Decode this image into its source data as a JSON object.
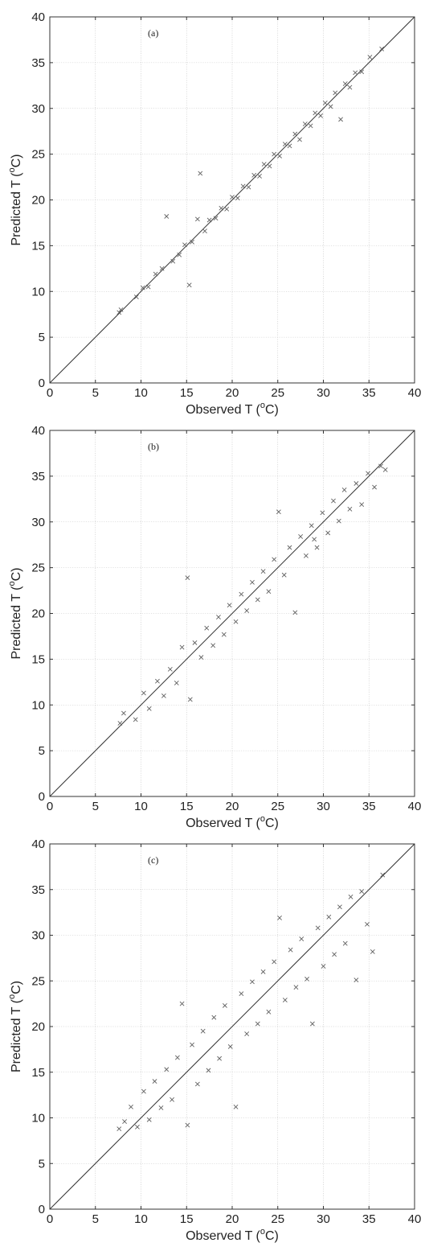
{
  "chart_data": [
    {
      "type": "scatter",
      "panel_label": "(a)",
      "xlabel": "Observed T (",
      "ylabel": "Predicted T (",
      "unit_sup": "o",
      "unit_tail": "C)",
      "xlim": [
        0,
        40
      ],
      "ylim": [
        0,
        40
      ],
      "xticks": [
        "0",
        "5",
        "10",
        "15",
        "20",
        "25",
        "30",
        "35",
        "40"
      ],
      "yticks": [
        "0",
        "5",
        "10",
        "15",
        "20",
        "25",
        "30",
        "35",
        "40"
      ],
      "grid": true,
      "marker": "x",
      "reference_line": "1:1",
      "series": [
        {
          "points": [
            [
              7.6,
              7.7
            ],
            [
              7.8,
              8.0
            ],
            [
              9.5,
              9.4
            ],
            [
              10.2,
              10.4
            ],
            [
              10.8,
              10.5
            ],
            [
              11.6,
              11.9
            ],
            [
              12.3,
              12.5
            ],
            [
              12.8,
              18.2
            ],
            [
              13.5,
              13.3
            ],
            [
              14.2,
              14.0
            ],
            [
              14.8,
              15.1
            ],
            [
              15.3,
              10.7
            ],
            [
              15.6,
              15.4
            ],
            [
              16.2,
              17.9
            ],
            [
              16.5,
              22.9
            ],
            [
              17.0,
              16.6
            ],
            [
              17.5,
              17.8
            ],
            [
              18.2,
              18.0
            ],
            [
              18.8,
              19.1
            ],
            [
              19.4,
              19.0
            ],
            [
              20.0,
              20.3
            ],
            [
              20.6,
              20.2
            ],
            [
              21.2,
              21.5
            ],
            [
              21.8,
              21.4
            ],
            [
              22.4,
              22.7
            ],
            [
              23.0,
              22.6
            ],
            [
              23.5,
              23.9
            ],
            [
              24.1,
              23.7
            ],
            [
              24.6,
              25.0
            ],
            [
              25.2,
              24.8
            ],
            [
              25.8,
              26.1
            ],
            [
              26.3,
              25.9
            ],
            [
              26.9,
              27.2
            ],
            [
              27.4,
              26.6
            ],
            [
              28.0,
              28.3
            ],
            [
              28.6,
              28.1
            ],
            [
              29.1,
              29.5
            ],
            [
              29.7,
              29.2
            ],
            [
              30.2,
              30.6
            ],
            [
              30.8,
              30.2
            ],
            [
              31.3,
              31.7
            ],
            [
              31.9,
              28.8
            ],
            [
              32.4,
              32.7
            ],
            [
              32.9,
              32.3
            ],
            [
              33.5,
              33.9
            ],
            [
              34.2,
              34.0
            ],
            [
              35.1,
              35.6
            ],
            [
              36.4,
              36.5
            ]
          ]
        }
      ]
    },
    {
      "type": "scatter",
      "panel_label": "(b)",
      "xlabel": "Observed T (",
      "ylabel": "Predicted T (",
      "unit_sup": "o",
      "unit_tail": "C)",
      "xlim": [
        0,
        40
      ],
      "ylim": [
        0,
        40
      ],
      "xticks": [
        "0",
        "5",
        "10",
        "15",
        "20",
        "25",
        "30",
        "35",
        "40"
      ],
      "yticks": [
        "0",
        "5",
        "10",
        "15",
        "20",
        "25",
        "30",
        "35",
        "40"
      ],
      "grid": true,
      "marker": "x",
      "reference_line": "1:1",
      "series": [
        {
          "points": [
            [
              7.7,
              8.0
            ],
            [
              8.1,
              9.1
            ],
            [
              9.4,
              8.4
            ],
            [
              10.3,
              11.3
            ],
            [
              10.9,
              9.6
            ],
            [
              11.8,
              12.6
            ],
            [
              12.5,
              11.0
            ],
            [
              13.2,
              13.9
            ],
            [
              13.9,
              12.4
            ],
            [
              14.5,
              16.3
            ],
            [
              15.1,
              23.9
            ],
            [
              15.4,
              10.6
            ],
            [
              15.9,
              16.8
            ],
            [
              16.6,
              15.2
            ],
            [
              17.2,
              18.4
            ],
            [
              17.9,
              16.5
            ],
            [
              18.5,
              19.6
            ],
            [
              19.1,
              17.7
            ],
            [
              19.7,
              20.9
            ],
            [
              20.4,
              19.1
            ],
            [
              21.0,
              22.1
            ],
            [
              21.6,
              20.3
            ],
            [
              22.2,
              23.4
            ],
            [
              22.8,
              21.5
            ],
            [
              23.4,
              24.6
            ],
            [
              24.0,
              22.4
            ],
            [
              24.6,
              25.9
            ],
            [
              25.1,
              31.1
            ],
            [
              25.7,
              24.2
            ],
            [
              26.3,
              27.2
            ],
            [
              26.9,
              20.1
            ],
            [
              27.5,
              28.4
            ],
            [
              28.1,
              26.3
            ],
            [
              28.7,
              29.6
            ],
            [
              29.3,
              27.2
            ],
            [
              29.9,
              31.0
            ],
            [
              30.5,
              28.8
            ],
            [
              31.1,
              32.3
            ],
            [
              31.7,
              30.1
            ],
            [
              32.3,
              33.5
            ],
            [
              32.9,
              31.4
            ],
            [
              33.6,
              34.2
            ],
            [
              34.2,
              31.9
            ],
            [
              34.9,
              35.3
            ],
            [
              35.6,
              33.8
            ],
            [
              36.3,
              36.1
            ],
            [
              36.8,
              35.7
            ],
            [
              29.0,
              28.1
            ]
          ]
        }
      ]
    },
    {
      "type": "scatter",
      "panel_label": "(c)",
      "xlabel": "Observed T (",
      "ylabel": "Predicted T (",
      "unit_sup": "o",
      "unit_tail": "C)",
      "xlim": [
        0,
        40
      ],
      "ylim": [
        0,
        40
      ],
      "xticks": [
        "0",
        "5",
        "10",
        "15",
        "20",
        "25",
        "30",
        "35",
        "40"
      ],
      "yticks": [
        "0",
        "5",
        "10",
        "15",
        "20",
        "25",
        "30",
        "35",
        "40"
      ],
      "grid": true,
      "marker": "x",
      "reference_line": "1:1",
      "series": [
        {
          "points": [
            [
              7.6,
              8.8
            ],
            [
              8.2,
              9.6
            ],
            [
              8.9,
              11.2
            ],
            [
              9.6,
              9.0
            ],
            [
              10.3,
              12.9
            ],
            [
              10.9,
              9.8
            ],
            [
              11.5,
              14.0
            ],
            [
              12.2,
              11.1
            ],
            [
              12.8,
              15.3
            ],
            [
              13.4,
              12.0
            ],
            [
              14.0,
              16.6
            ],
            [
              14.5,
              22.5
            ],
            [
              15.1,
              9.2
            ],
            [
              15.6,
              18.0
            ],
            [
              16.2,
              13.7
            ],
            [
              16.8,
              19.5
            ],
            [
              17.4,
              15.2
            ],
            [
              18.0,
              21.0
            ],
            [
              18.6,
              16.5
            ],
            [
              19.2,
              22.3
            ],
            [
              19.8,
              17.8
            ],
            [
              20.4,
              11.2
            ],
            [
              21.0,
              23.6
            ],
            [
              21.6,
              19.2
            ],
            [
              22.2,
              24.9
            ],
            [
              22.8,
              20.3
            ],
            [
              23.4,
              26.0
            ],
            [
              24.0,
              21.6
            ],
            [
              24.6,
              27.1
            ],
            [
              25.2,
              31.9
            ],
            [
              25.8,
              22.9
            ],
            [
              26.4,
              28.4
            ],
            [
              27.0,
              24.3
            ],
            [
              27.6,
              29.6
            ],
            [
              28.2,
              25.2
            ],
            [
              28.8,
              20.3
            ],
            [
              29.4,
              30.8
            ],
            [
              30.0,
              26.6
            ],
            [
              30.6,
              32.0
            ],
            [
              31.2,
              27.9
            ],
            [
              31.8,
              33.1
            ],
            [
              32.4,
              29.1
            ],
            [
              33.0,
              34.2
            ],
            [
              33.6,
              25.1
            ],
            [
              34.2,
              34.8
            ],
            [
              34.8,
              31.2
            ],
            [
              35.4,
              28.2
            ],
            [
              36.5,
              36.6
            ]
          ]
        }
      ]
    }
  ]
}
